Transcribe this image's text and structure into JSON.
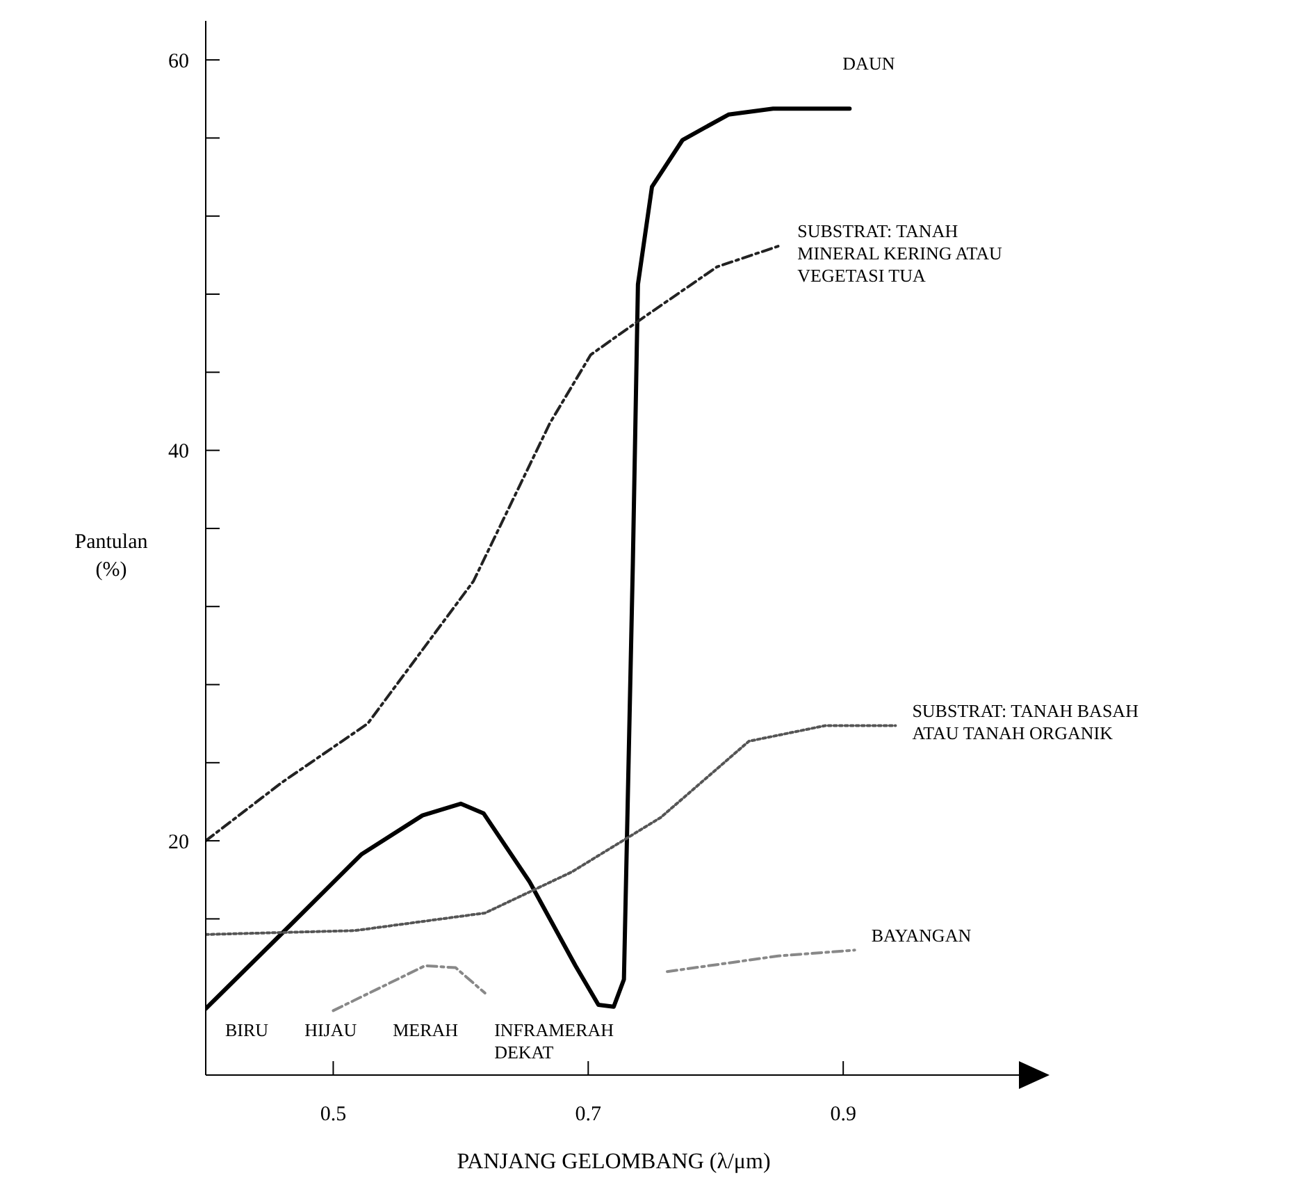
{
  "chart_data": {
    "type": "line",
    "xlabel": "PANJANG GELOMBANG (λ/μm)",
    "ylabel": "Pantulan (%)",
    "xlim": [
      0.4,
      1.04
    ],
    "xticks": [
      0.5,
      0.7,
      0.9
    ],
    "ylim": [
      8,
      62
    ],
    "yticks": [
      {
        "value": 16,
        "label": null
      },
      20,
      {
        "value": 24,
        "label": null
      },
      {
        "value": 28,
        "label": null
      },
      {
        "value": 32,
        "label": null
      },
      {
        "value": 36,
        "label": null
      },
      40,
      {
        "value": 44,
        "label": null
      },
      {
        "value": 48,
        "label": null
      },
      {
        "value": 52,
        "label": null
      },
      {
        "value": 56,
        "label": null
      },
      60
    ],
    "grid": false,
    "legend": false,
    "marker": "none",
    "series": [
      {
        "name": "DAUN",
        "color": "#000000",
        "line_style": "solid",
        "x": [
          0.4,
          0.462,
          0.522,
          0.57,
          0.6,
          0.618,
          0.654,
          0.69,
          0.708,
          0.72,
          0.728,
          0.735,
          0.739,
          0.75,
          0.774,
          0.81,
          0.845,
          0.905
        ],
        "values": [
          11.4,
          15.4,
          19.3,
          21.3,
          21.9,
          21.4,
          17.9,
          13.6,
          11.6,
          11.5,
          12.9,
          34.2,
          48.5,
          53.5,
          55.9,
          57.2,
          57.5,
          57.5
        ]
      },
      {
        "name": "SUBSTRAT: TANAH MINERAL KERING ATAU VEGETASI TUA",
        "color": "#222222",
        "line_style": "dashed",
        "x": [
          0.4,
          0.46,
          0.527,
          0.61,
          0.67,
          0.702,
          0.741,
          0.801,
          0.851
        ],
        "values": [
          20,
          23,
          26,
          33.3,
          41.4,
          44.9,
          46.7,
          49.4,
          50.5
        ]
      },
      {
        "name": "SUBSTRAT: TANAH BASAH ATAU TANAH ORGANIK",
        "color": "#555555",
        "line_style": "dotted",
        "x": [
          0.4,
          0.517,
          0.619,
          0.687,
          0.757,
          0.826,
          0.886,
          0.941
        ],
        "values": [
          15.2,
          15.4,
          16.3,
          18.4,
          21.2,
          25.1,
          25.9,
          25.9
        ]
      },
      {
        "name": "BAYANGAN",
        "color": "#888888",
        "line_style": "dashed",
        "x": [
          0.5,
          0.572,
          0.596,
          0.619,
          0.69,
          0.762,
          0.849,
          0.909
        ],
        "values": [
          11.3,
          13.6,
          13.5,
          12.2,
          null,
          13.3,
          14.1,
          14.4
        ]
      }
    ],
    "annotations": [
      "BIRU",
      "HIJAU",
      "MERAH",
      "INFRAMERAH DEKAT"
    ]
  }
}
